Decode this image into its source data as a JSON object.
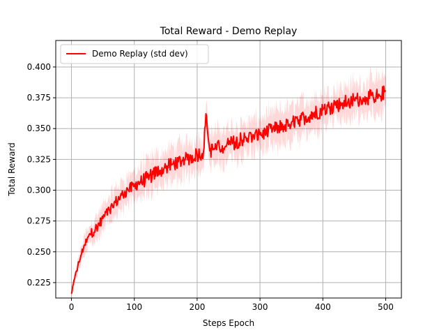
{
  "chart_data": {
    "type": "line",
    "title": "Total Reward - Demo Replay",
    "xlabel": "Steps Epoch",
    "ylabel": "Total Reward",
    "xlim": [
      -25,
      525
    ],
    "ylim": [
      0.2125,
      0.4215
    ],
    "xticks": [
      0,
      100,
      200,
      300,
      400,
      500
    ],
    "yticks": [
      0.225,
      0.25,
      0.275,
      0.3,
      0.325,
      0.35,
      0.375,
      0.4
    ],
    "ytick_labels": [
      "0.225",
      "0.250",
      "0.275",
      "0.300",
      "0.325",
      "0.350",
      "0.375",
      "0.400"
    ],
    "grid": true,
    "legend_position": "top-left",
    "series": [
      {
        "name": "Demo Replay (std dev)",
        "color": "#ff0000",
        "band_color": "#ff0000",
        "points_x": [
          0,
          5,
          10,
          15,
          20,
          25,
          30,
          40,
          50,
          60,
          70,
          80,
          90,
          100,
          110,
          120,
          130,
          140,
          150,
          160,
          170,
          180,
          190,
          200,
          210,
          214,
          220,
          230,
          240,
          250,
          260,
          270,
          280,
          290,
          300,
          310,
          320,
          330,
          340,
          350,
          360,
          370,
          380,
          390,
          400,
          410,
          420,
          430,
          440,
          450,
          460,
          470,
          480,
          490,
          500
        ],
        "points_y": [
          0.216,
          0.228,
          0.238,
          0.247,
          0.255,
          0.26,
          0.264,
          0.27,
          0.277,
          0.284,
          0.29,
          0.296,
          0.3,
          0.303,
          0.306,
          0.31,
          0.313,
          0.316,
          0.318,
          0.321,
          0.323,
          0.325,
          0.327,
          0.329,
          0.331,
          0.362,
          0.332,
          0.334,
          0.336,
          0.337,
          0.339,
          0.341,
          0.342,
          0.344,
          0.345,
          0.347,
          0.349,
          0.351,
          0.353,
          0.355,
          0.357,
          0.359,
          0.361,
          0.363,
          0.365,
          0.367,
          0.369,
          0.37,
          0.372,
          0.373,
          0.374,
          0.375,
          0.376,
          0.377,
          0.38
        ],
        "noise": [
          0.001,
          0.002,
          0.003,
          0.003,
          0.003,
          0.003,
          0.004,
          0.004,
          0.004,
          0.004,
          0.005,
          0.005,
          0.005,
          0.005,
          0.006,
          0.006,
          0.006,
          0.006,
          0.006,
          0.006,
          0.006,
          0.006,
          0.006,
          0.006,
          0.006,
          0.003,
          0.006,
          0.006,
          0.006,
          0.006,
          0.006,
          0.006,
          0.006,
          0.006,
          0.006,
          0.006,
          0.006,
          0.006,
          0.006,
          0.006,
          0.006,
          0.006,
          0.006,
          0.006,
          0.006,
          0.006,
          0.006,
          0.006,
          0.006,
          0.006,
          0.006,
          0.006,
          0.006,
          0.006,
          0.006
        ],
        "std": [
          0.002,
          0.004,
          0.005,
          0.006,
          0.007,
          0.008,
          0.008,
          0.009,
          0.01,
          0.01,
          0.011,
          0.011,
          0.012,
          0.012,
          0.012,
          0.013,
          0.013,
          0.013,
          0.013,
          0.013,
          0.013,
          0.013,
          0.013,
          0.013,
          0.013,
          0.01,
          0.013,
          0.013,
          0.013,
          0.013,
          0.013,
          0.013,
          0.013,
          0.013,
          0.013,
          0.013,
          0.013,
          0.013,
          0.013,
          0.013,
          0.013,
          0.013,
          0.013,
          0.013,
          0.013,
          0.013,
          0.013,
          0.013,
          0.013,
          0.013,
          0.013,
          0.013,
          0.013,
          0.013,
          0.013
        ]
      }
    ]
  }
}
